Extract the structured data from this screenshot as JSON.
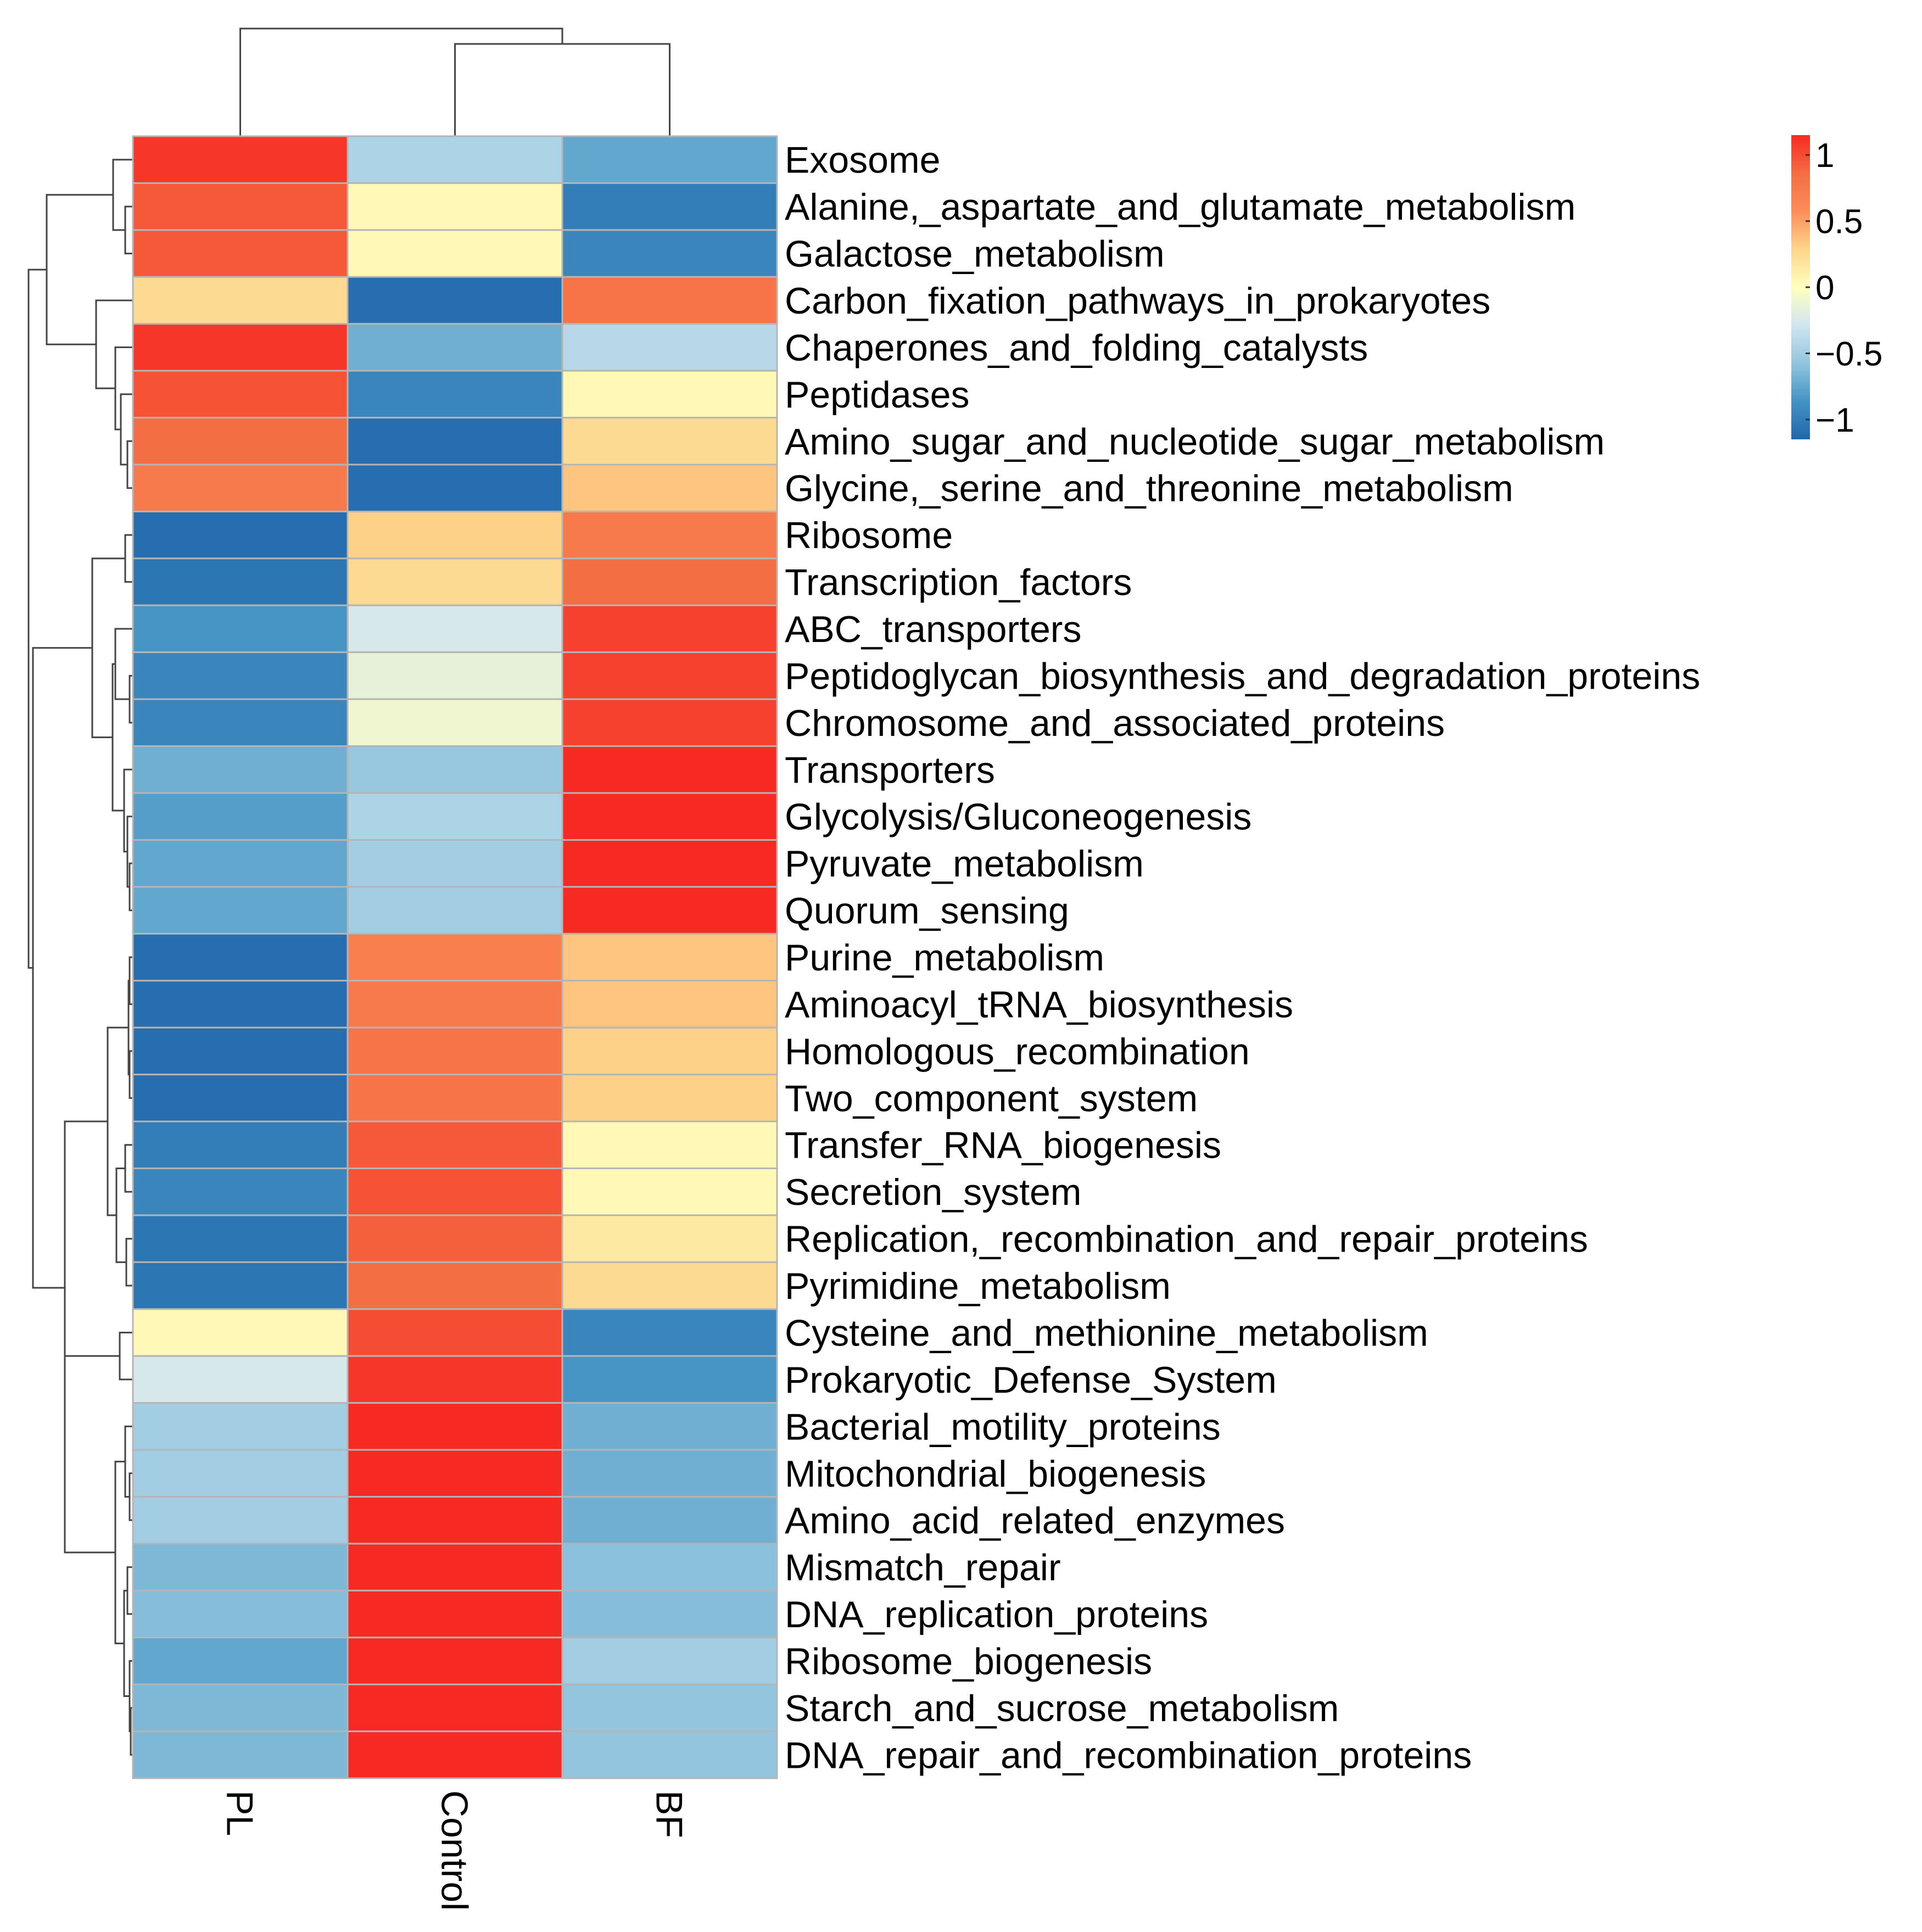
{
  "chart_data": {
    "type": "heatmap",
    "title": "",
    "columns": [
      "PL",
      "Control",
      "BF"
    ],
    "rows": [
      "Exosome",
      "Alanine,_aspartate_and_glutamate_metabolism",
      "Galactose_metabolism",
      "Carbon_fixation_pathways_in_prokaryotes",
      "Chaperones_and_folding_catalysts",
      "Peptidases",
      "Amino_sugar_and_nucleotide_sugar_metabolism",
      "Glycine,_serine_and_threonine_metabolism",
      "Ribosome",
      "Transcription_factors",
      "ABC_transporters",
      "Peptidoglycan_biosynthesis_and_degradation_proteins",
      "Chromosome_and_associated_proteins",
      "Transporters",
      "Glycolysis/Gluconeogenesis",
      "Pyruvate_metabolism",
      "Quorum_sensing",
      "Purine_metabolism",
      "Aminoacyl_tRNA_biosynthesis",
      "Homologous_recombination",
      "Two_component_system",
      "Transfer_RNA_biogenesis",
      "Secretion_system",
      "Replication,_recombination_and_repair_proteins",
      "Pyrimidine_metabolism",
      "Cysteine_and_methionine_metabolism",
      "Prokaryotic_Defense_System",
      "Bacterial_motility_proteins",
      "Mitochondrial_biogenesis",
      "Amino_acid_related_enzymes",
      "Mismatch_repair",
      "DNA_replication_proteins",
      "Ribosome_biogenesis",
      "Starch_and_sucrose_metabolism",
      "DNA_repair_and_recombination_proteins"
    ],
    "values": [
      [
        1.1,
        -0.45,
        -0.75
      ],
      [
        0.95,
        0.05,
        -1.0
      ],
      [
        0.95,
        0.05,
        -0.95
      ],
      [
        0.25,
        -1.1,
        0.8
      ],
      [
        1.1,
        -0.7,
        -0.4
      ],
      [
        0.98,
        -0.95,
        0.05
      ],
      [
        0.85,
        -1.1,
        0.25
      ],
      [
        0.75,
        -1.1,
        0.35
      ],
      [
        -1.1,
        0.3,
        0.75
      ],
      [
        -1.05,
        0.25,
        0.85
      ],
      [
        -0.85,
        -0.25,
        1.05
      ],
      [
        -0.95,
        -0.15,
        1.05
      ],
      [
        -0.95,
        -0.1,
        1.05
      ],
      [
        -0.7,
        -0.55,
        1.15
      ],
      [
        -0.8,
        -0.45,
        1.15
      ],
      [
        -0.75,
        -0.5,
        1.15
      ],
      [
        -0.75,
        -0.5,
        1.15
      ],
      [
        -1.1,
        0.7,
        0.35
      ],
      [
        -1.1,
        0.75,
        0.35
      ],
      [
        -1.1,
        0.8,
        0.3
      ],
      [
        -1.1,
        0.8,
        0.3
      ],
      [
        -1.0,
        0.95,
        0.05
      ],
      [
        -0.95,
        0.98,
        0.05
      ],
      [
        -1.05,
        0.92,
        0.15
      ],
      [
        -1.05,
        0.85,
        0.25
      ],
      [
        0.05,
        1.0,
        -0.95
      ],
      [
        -0.25,
        1.1,
        -0.85
      ],
      [
        -0.5,
        1.15,
        -0.7
      ],
      [
        -0.5,
        1.15,
        -0.7
      ],
      [
        -0.5,
        1.15,
        -0.7
      ],
      [
        -0.65,
        1.15,
        -0.6
      ],
      [
        -0.62,
        1.15,
        -0.62
      ],
      [
        -0.75,
        1.15,
        -0.5
      ],
      [
        -0.65,
        1.15,
        -0.57
      ],
      [
        -0.65,
        1.15,
        -0.57
      ]
    ],
    "color_scale": {
      "range": [
        -1.15,
        1.15
      ],
      "stops": [
        "#2166ac",
        "#4393c3",
        "#92c5de",
        "#d1e5f0",
        "#ffffbf",
        "#fdd58a",
        "#fc8d59",
        "#f46d43",
        "#f62a22"
      ]
    },
    "legend": {
      "position": "top-right",
      "ticks": [
        1,
        0.5,
        0,
        -0.5,
        -1
      ],
      "tick_labels": [
        "1",
        "0.5",
        "0",
        "−0.5",
        "−1"
      ]
    },
    "row_dendrogram": true,
    "column_dendrogram": true
  }
}
